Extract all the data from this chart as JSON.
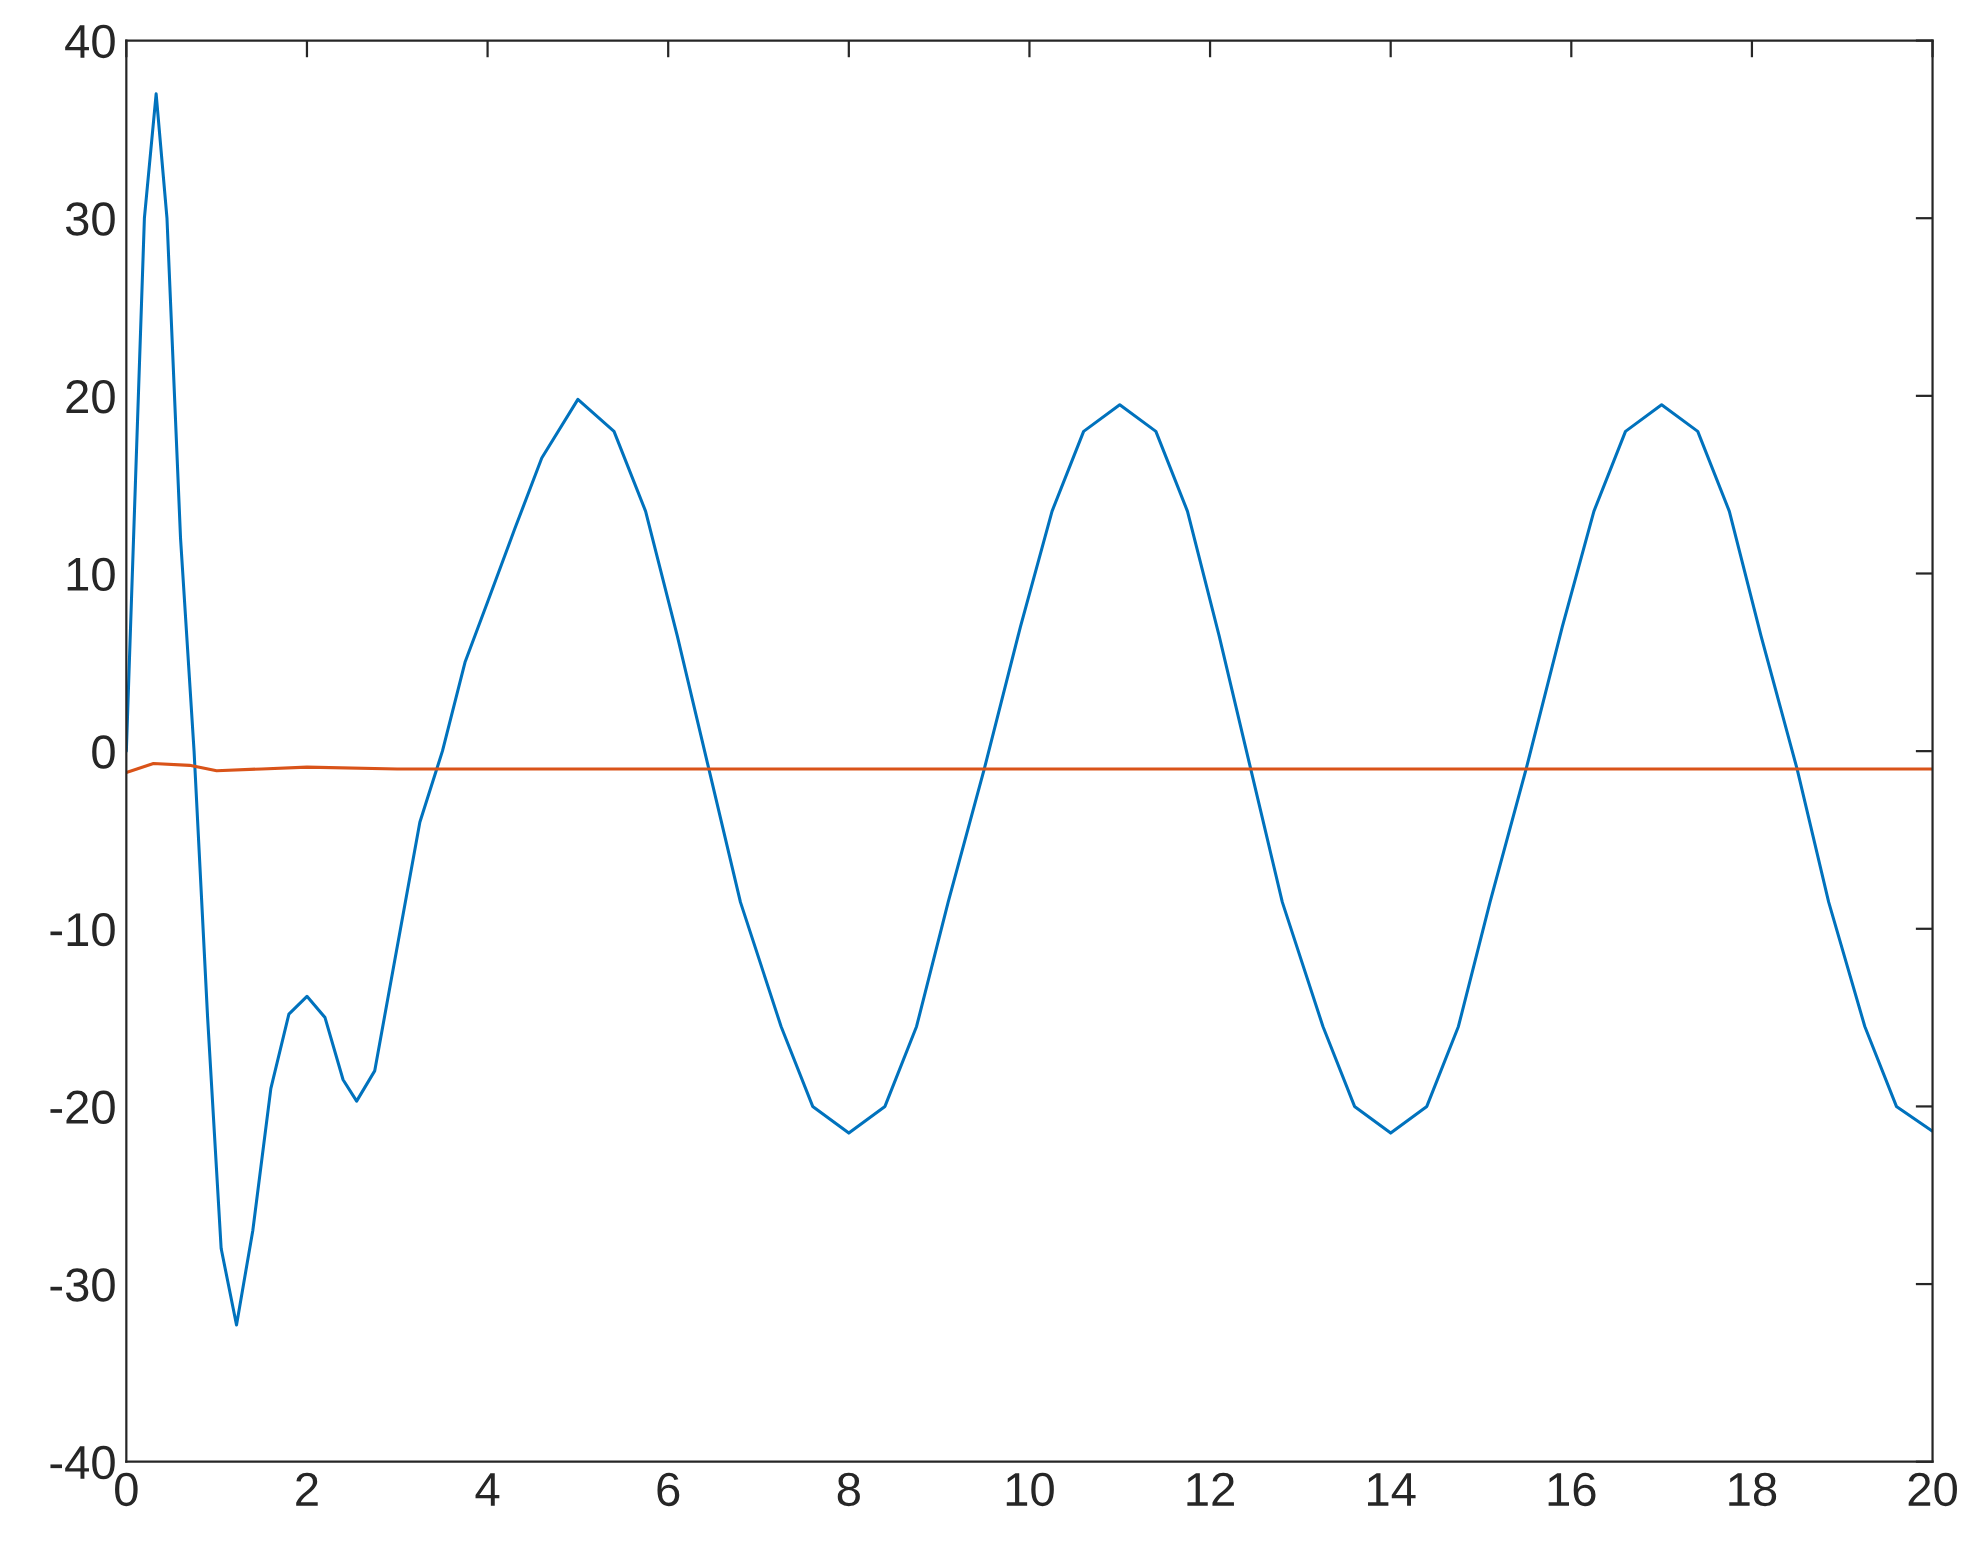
{
  "chart_data": {
    "type": "line",
    "xlim": [
      0,
      20
    ],
    "ylim": [
      -40,
      40
    ],
    "xticks": [
      0,
      2,
      4,
      6,
      8,
      10,
      12,
      14,
      16,
      18,
      20
    ],
    "yticks": [
      -40,
      -30,
      -20,
      -10,
      0,
      10,
      20,
      30,
      40
    ],
    "grid": false,
    "legend": false,
    "marker": "none",
    "line_style": "solid",
    "series": [
      {
        "color": "#0072bd",
        "x": [
          0,
          0.1,
          0.2,
          0.33,
          0.45,
          0.6,
          0.75,
          0.9,
          1.05,
          1.22,
          1.4,
          1.6,
          1.8,
          2.0,
          2.2,
          2.4,
          2.55,
          2.75,
          3.0,
          3.25,
          3.5,
          3.75,
          4.0,
          4.3,
          4.6,
          5.0,
          5.4,
          5.75,
          6.1,
          6.45,
          6.8,
          7.25,
          7.6,
          8.0,
          8.4,
          8.75,
          9.1,
          9.5,
          9.9,
          10.25,
          10.6,
          11.0,
          11.4,
          11.75,
          12.1,
          12.45,
          12.8,
          13.25,
          13.6,
          14.0,
          14.4,
          14.75,
          15.1,
          15.5,
          15.9,
          16.25,
          16.6,
          17.0,
          17.4,
          17.75,
          18.1,
          18.5,
          18.85,
          19.25,
          19.6,
          20.0
        ],
        "values": [
          0,
          15,
          30,
          37,
          30,
          12,
          0,
          -15,
          -28,
          -32.3,
          -27,
          -19,
          -14.8,
          -13.8,
          -15,
          -18.5,
          -19.7,
          -18,
          -11,
          -4,
          0,
          5,
          8.4,
          12.5,
          16.5,
          19.8,
          18,
          13.5,
          6.5,
          -1,
          -8.5,
          -15.5,
          -20,
          -21.5,
          -20,
          -15.5,
          -8.5,
          -1,
          7,
          13.5,
          18,
          19.5,
          18,
          13.5,
          6.5,
          -1,
          -8.5,
          -15.5,
          -20,
          -21.5,
          -20,
          -15.5,
          -8.5,
          -1,
          7,
          13.5,
          18,
          19.5,
          18,
          13.5,
          6.5,
          -1,
          -8.5,
          -15.5,
          -20,
          -21.4
        ]
      },
      {
        "color": "#d95319",
        "x": [
          0,
          0.3,
          0.7,
          1.0,
          1.5,
          2,
          3,
          20
        ],
        "values": [
          -1.2,
          -0.7,
          -0.8,
          -1.1,
          -1.0,
          -0.9,
          -1.0,
          -1.0
        ]
      }
    ]
  }
}
